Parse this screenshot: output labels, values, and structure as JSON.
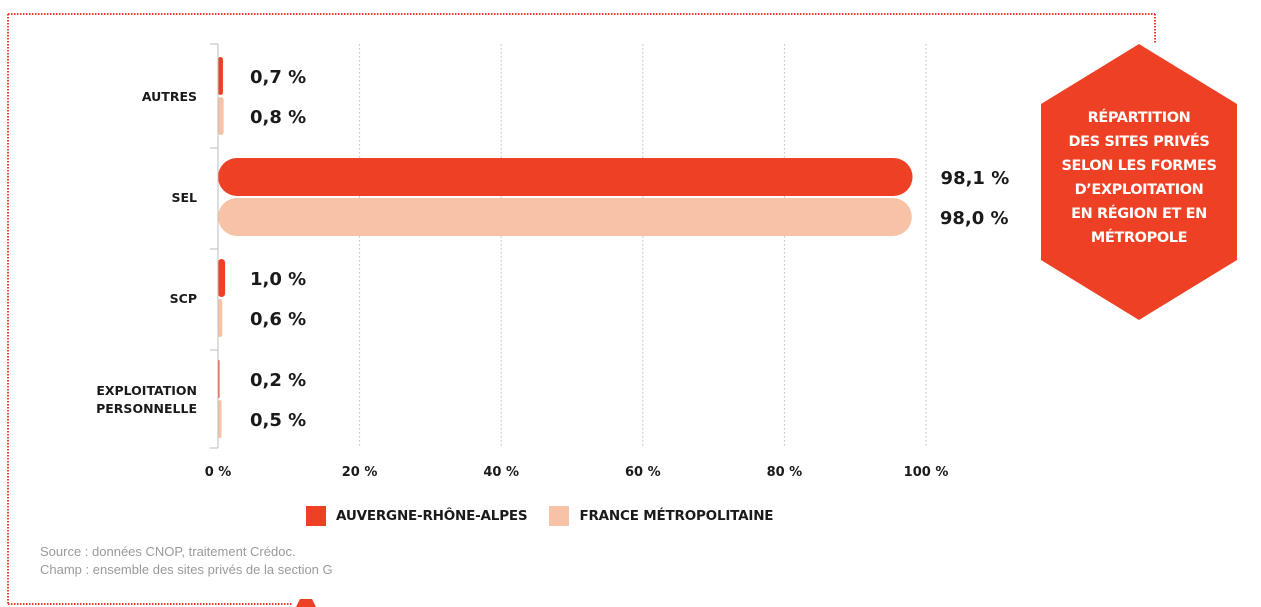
{
  "chart_data": {
    "type": "bar",
    "orientation": "horizontal",
    "categories": [
      "AUTRES",
      "SEL",
      "SCP",
      "EXPLOITATION\nPERSONNELLE"
    ],
    "series": [
      {
        "name": "AUVERGNE-RHÔNE-ALPES",
        "values": [
          0.7,
          98.1,
          1.0,
          0.2
        ],
        "labels": [
          "0,7 %",
          "98,1 %",
          "1,0 %",
          "0,2 %"
        ],
        "color": "#ee4024"
      },
      {
        "name": "FRANCE MÉTROPOLITAINE",
        "values": [
          0.8,
          98.0,
          0.6,
          0.5
        ],
        "labels": [
          "0,8 %",
          "98,0 %",
          "0,6 %",
          "0,5 %"
        ],
        "color": "#f8c2a6"
      }
    ],
    "xlim": [
      0,
      100
    ],
    "xticks": [
      0,
      20,
      40,
      60,
      80,
      100
    ],
    "xtick_labels": [
      "0 %",
      "20 %",
      "40 %",
      "60 %",
      "80 %",
      "100 %"
    ],
    "grid": "vertical dotted",
    "legend_position": "bottom"
  },
  "badge": {
    "text": "RÉPARTITION\nDES SITES PRIVÉS\nSELON LES FORMES\nD’EXPLOITATION\nEN RÉGION ET EN\nMÉTROPOLE",
    "color": "#ee4024"
  },
  "legend": {
    "items": [
      {
        "label": "AUVERGNE-RHÔNE-ALPES",
        "color": "#ee4024"
      },
      {
        "label": "FRANCE MÉTROPOLITAINE",
        "color": "#f8c2a6"
      }
    ]
  },
  "source": {
    "line1": "Source : données CNOP, traitement Crédoc.",
    "line2": "Champ : ensemble des sites privés de la section G"
  },
  "colors": {
    "frame": "#ee4024",
    "accent": "#ee4024",
    "light": "#f8c2a6"
  }
}
